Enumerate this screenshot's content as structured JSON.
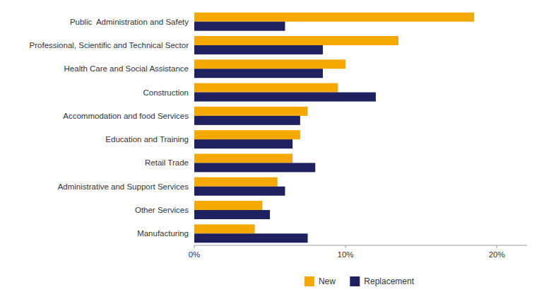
{
  "chart_data": {
    "type": "bar",
    "orientation": "horizontal",
    "categories": [
      "Public  Administration and Safety",
      "Professional, Scientific and Technical Sector",
      "Health Care and Social Assistance",
      "Construction",
      "Accommodation and food Services",
      "Education and Training",
      "Retail Trade",
      "Administrative and Support Services",
      "Other Services",
      "Manufacturing"
    ],
    "series": [
      {
        "name": "New",
        "color": "#F5A800",
        "values": [
          18.5,
          13.5,
          10.0,
          9.5,
          7.5,
          7.0,
          6.5,
          5.5,
          4.5,
          4.0
        ]
      },
      {
        "name": "Replacement",
        "color": "#1E2060",
        "values": [
          6.0,
          8.5,
          8.5,
          12.0,
          7.0,
          6.5,
          8.0,
          6.0,
          5.0,
          7.5
        ]
      }
    ],
    "xlim": [
      0,
      22
    ],
    "xticks": [
      {
        "value": 0,
        "label": "0%"
      },
      {
        "value": 10,
        "label": "10%"
      },
      {
        "value": 20,
        "label": "20%"
      }
    ],
    "grid": false,
    "legend": "bottom"
  }
}
